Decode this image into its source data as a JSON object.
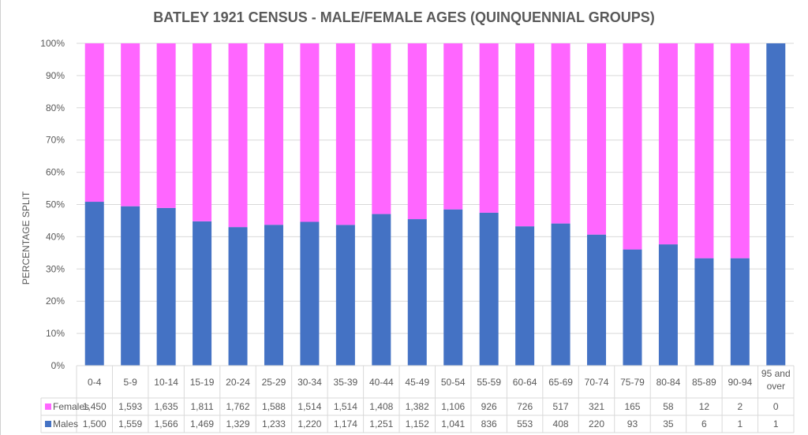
{
  "chart_data": {
    "type": "bar",
    "stacked": "percent",
    "title": "BATLEY 1921 CENSUS - MALE/FEMALE AGES (QUINQUENNIAL GROUPS)",
    "xlabel": "",
    "ylabel": "PERCENTAGE SPLIT",
    "ylim": [
      0,
      100
    ],
    "yticks": [
      "0%",
      "10%",
      "20%",
      "30%",
      "40%",
      "50%",
      "60%",
      "70%",
      "80%",
      "90%",
      "100%"
    ],
    "grid": true,
    "legend": "data-table",
    "categories": [
      "0-4",
      "5-9",
      "10-14",
      "15-19",
      "20-24",
      "25-29",
      "30-34",
      "35-39",
      "40-44",
      "45-49",
      "50-54",
      "55-59",
      "60-64",
      "65-69",
      "70-74",
      "75-79",
      "80-84",
      "85-89",
      "90-94",
      "95 and over"
    ],
    "series": [
      {
        "name": "Females",
        "color": "#ff66ff",
        "values": [
          1450,
          1593,
          1635,
          1811,
          1762,
          1588,
          1514,
          1514,
          1408,
          1382,
          1106,
          926,
          726,
          517,
          321,
          165,
          58,
          12,
          2,
          0
        ],
        "labels": [
          "1,450",
          "1,593",
          "1,635",
          "1,811",
          "1,762",
          "1,588",
          "1,514",
          "1,514",
          "1,408",
          "1,382",
          "1,106",
          "926",
          "726",
          "517",
          "321",
          "165",
          "58",
          "12",
          "2",
          "0"
        ]
      },
      {
        "name": "Males",
        "color": "#4472c4",
        "values": [
          1500,
          1559,
          1566,
          1469,
          1329,
          1233,
          1220,
          1174,
          1251,
          1152,
          1041,
          836,
          553,
          408,
          220,
          93,
          35,
          6,
          1,
          1
        ],
        "labels": [
          "1,500",
          "1,559",
          "1,566",
          "1,469",
          "1,329",
          "1,233",
          "1,220",
          "1,174",
          "1,251",
          "1,152",
          "1,041",
          "836",
          "553",
          "408",
          "220",
          "93",
          "35",
          "6",
          "1",
          "1"
        ]
      }
    ]
  }
}
